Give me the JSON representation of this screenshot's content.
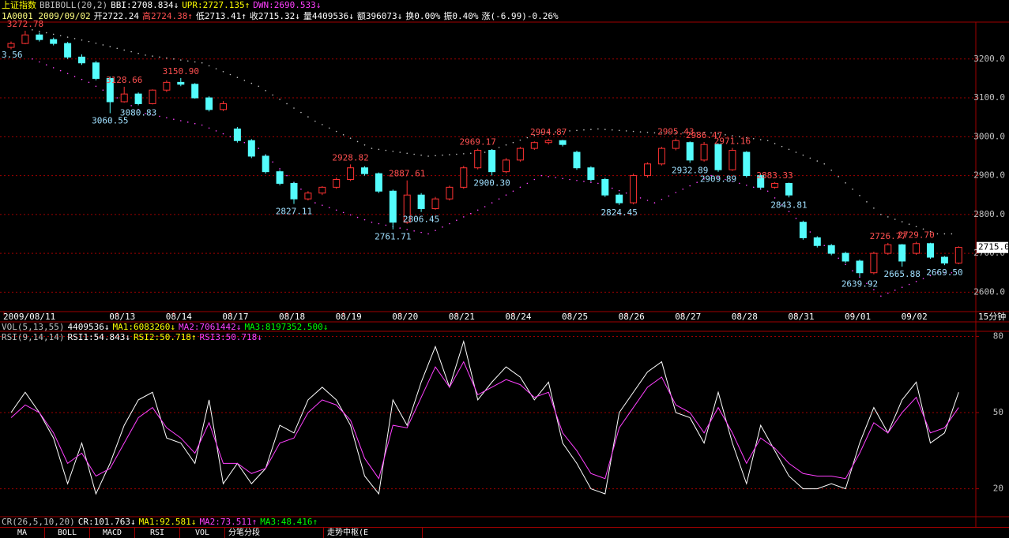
{
  "header": {
    "items": [
      {
        "text": "上证指数",
        "color": "#ffff00"
      },
      {
        "text": "BBIBOLL(20,2)",
        "color": "#c0c0c0"
      },
      {
        "text": "BBI:2708.834↓",
        "color": "#ffffff"
      },
      {
        "text": "UPR:2727.135↑",
        "color": "#ffff00"
      },
      {
        "text": "DWN:2690.533↓",
        "color": "#ff40ff"
      }
    ]
  },
  "quote": {
    "items": [
      {
        "text": "1A0001 2009/09/02",
        "color": "#ffff80"
      },
      {
        "text": "开2722.24",
        "color": "#ffffff"
      },
      {
        "text": "高2724.38↑",
        "color": "#ff5050"
      },
      {
        "text": "低2713.41↑",
        "color": "#ffffff"
      },
      {
        "text": "收2715.32↓",
        "color": "#ffffff"
      },
      {
        "text": "量4409536↓",
        "color": "#ffffff"
      },
      {
        "text": "额396073↓",
        "color": "#ffffff"
      },
      {
        "text": "换0.00%",
        "color": "#ffffff"
      },
      {
        "text": "振0.40%",
        "color": "#ffffff"
      },
      {
        "text": "涨(-6.99)-0.26%",
        "color": "#ffffff"
      }
    ]
  },
  "vol_line": {
    "items": [
      {
        "text": "VOL(5,13,55)",
        "color": "#c0c0c0"
      },
      {
        "text": "4409536↓",
        "color": "#ffffff"
      },
      {
        "text": "MA1:6083260↓",
        "color": "#ffff00"
      },
      {
        "text": "MA2:7061442↓",
        "color": "#ff40ff"
      },
      {
        "text": "MA3:8197352.500↓",
        "color": "#00ff00"
      }
    ]
  },
  "rsi_line": {
    "items": [
      {
        "text": "RSI(9,14,14)",
        "color": "#c0c0c0"
      },
      {
        "text": "RSI1:54.843↓",
        "color": "#ffffff"
      },
      {
        "text": "RSI2:50.718↑",
        "color": "#ffff00"
      },
      {
        "text": "RSI3:50.718↓",
        "color": "#ff40ff"
      }
    ]
  },
  "cr_line": {
    "items": [
      {
        "text": "CR(26,5,10,20)",
        "color": "#c0c0c0"
      },
      {
        "text": "CR:101.763↓",
        "color": "#ffffff"
      },
      {
        "text": "MA1:92.581↓",
        "color": "#ffff00"
      },
      {
        "text": "MA2:73.511↑",
        "color": "#ff40ff"
      },
      {
        "text": "MA3:48.416↑",
        "color": "#00ff00"
      }
    ]
  },
  "tabs": [
    "MA",
    "BOLL",
    "MACD",
    "RSI",
    "VOL",
    "分笔分段",
    "走势中枢(E"
  ],
  "clipped_label": "3.56",
  "period_label": "15分钟",
  "chart_data": [
    {
      "type": "candlestick",
      "up_color": "#ff3232",
      "down_color": "#54fcfc",
      "band_color": "#c0c0c0",
      "lower_band_color": "#ff40ff",
      "grid": true,
      "ylim": [
        2550,
        3295
      ],
      "yticks": [
        {
          "value": 3200,
          "label": "3200.0"
        },
        {
          "value": 3100,
          "label": "3100.0"
        },
        {
          "value": 3000,
          "label": "3000.0"
        },
        {
          "value": 2900,
          "label": "2900.0"
        },
        {
          "value": 2800,
          "label": "2800.0"
        },
        {
          "value": 2700,
          "label": "2700.0"
        },
        {
          "value": 2600,
          "label": "2600.0"
        }
      ],
      "xticks": [
        {
          "value": 0,
          "label": "2009/08/11"
        },
        {
          "value": 8,
          "label": "08/13"
        },
        {
          "value": 12,
          "label": "08/14"
        },
        {
          "value": 16,
          "label": "08/17"
        },
        {
          "value": 20,
          "label": "08/18"
        },
        {
          "value": 24,
          "label": "08/19"
        },
        {
          "value": 28,
          "label": "08/20"
        },
        {
          "value": 32,
          "label": "08/21"
        },
        {
          "value": 36,
          "label": "08/24"
        },
        {
          "value": 40,
          "label": "08/25"
        },
        {
          "value": 44,
          "label": "08/26"
        },
        {
          "value": 48,
          "label": "08/27"
        },
        {
          "value": 52,
          "label": "08/28"
        },
        {
          "value": 56,
          "label": "08/31"
        },
        {
          "value": 60,
          "label": "09/01"
        },
        {
          "value": 64,
          "label": "09/02"
        }
      ],
      "open": [
        3230,
        3240,
        3262,
        3250,
        3240,
        3205,
        3190,
        3150,
        3090,
        3110,
        3085,
        3120,
        3140,
        3135,
        3100,
        3070,
        3020,
        2990,
        2950,
        2910,
        2880,
        2840,
        2855,
        2870,
        2890,
        2920,
        2905,
        2860,
        2780,
        2850,
        2815,
        2840,
        2870,
        2920,
        2965,
        2910,
        2940,
        2970,
        2985,
        2990,
        2960,
        2920,
        2890,
        2850,
        2830,
        2900,
        2930,
        2970,
        2985,
        2940,
        2980,
        2915,
        2960,
        2900,
        2870,
        2880,
        2780,
        2740,
        2720,
        2700,
        2680,
        2650,
        2700,
        2722,
        2700,
        2725,
        2690,
        2675
      ],
      "high": [
        3245,
        3272.78,
        3268,
        3255,
        3244,
        3212,
        3195,
        3155,
        3128.66,
        3114,
        3122,
        3145,
        3150.9,
        3138,
        3104,
        3092,
        3025,
        2994,
        2955,
        2914,
        2884,
        2860,
        2873,
        2895,
        2928.82,
        2924,
        2908,
        2864,
        2887.61,
        2855,
        2845,
        2874,
        2925,
        2969.17,
        2968,
        2945,
        2974,
        2988,
        2994.87,
        2992,
        2964,
        2924,
        2894,
        2855,
        2905,
        2934,
        2974,
        2995.43,
        2988,
        2986.47,
        2983,
        2971.16,
        2963,
        2904,
        2883.33,
        2882,
        2784,
        2744,
        2724,
        2704,
        2684,
        2704,
        2726.77,
        2724,
        2729.7,
        2727,
        2693,
        2718
      ],
      "low": [
        3225,
        3238,
        3245,
        3235,
        3200,
        3185,
        3145,
        3060.55,
        3088,
        3080.83,
        3083,
        3115,
        3130,
        3098,
        3065,
        3066,
        2985,
        2945,
        2905,
        2875,
        2827.11,
        2836,
        2850,
        2866,
        2886,
        2900,
        2855,
        2761.71,
        2776,
        2806.45,
        2812,
        2836,
        2866,
        2916,
        2900.3,
        2906,
        2936,
        2966,
        2980,
        2975,
        2915,
        2885,
        2845,
        2824.45,
        2826,
        2895,
        2926,
        2965,
        2932.89,
        2936,
        2909.89,
        2912,
        2895,
        2865,
        2866,
        2843.81,
        2735,
        2715,
        2695,
        2675,
        2639.92,
        2646,
        2696,
        2665.88,
        2696,
        2686,
        2669.5,
        2672
      ],
      "close": [
        3240,
        3262,
        3250,
        3240,
        3205,
        3190,
        3150,
        3090,
        3110,
        3085,
        3120,
        3140,
        3135,
        3100,
        3070,
        3085,
        2990,
        2950,
        2910,
        2880,
        2840,
        2855,
        2870,
        2890,
        2920,
        2905,
        2860,
        2780,
        2850,
        2815,
        2840,
        2870,
        2920,
        2965,
        2910,
        2940,
        2970,
        2985,
        2990,
        2980,
        2920,
        2890,
        2850,
        2830,
        2900,
        2930,
        2970,
        2990,
        2940,
        2980,
        2915,
        2965,
        2900,
        2870,
        2880,
        2850,
        2740,
        2720,
        2700,
        2680,
        2650,
        2700,
        2722,
        2680,
        2725,
        2690,
        2675,
        2715.32
      ],
      "bands": {
        "upper": [
          3275,
          3245,
          3210,
          3190,
          3130,
          3040,
          2970,
          2950,
          2960,
          3010,
          3020,
          3010,
          3010,
          2990,
          2930,
          2800,
          2750
        ],
        "lower": [
          3200,
          3140,
          3060,
          3030,
          2970,
          2830,
          2780,
          2750,
          2820,
          2900,
          2880,
          2830,
          2900,
          2860,
          2720,
          2590,
          2650
        ]
      },
      "annotations": [
        {
          "value": 3272.78,
          "label": "3272.78"
        },
        {
          "value": 3128.66,
          "label": "3128.66"
        },
        {
          "value": 3150.9,
          "label": "3150.90"
        },
        {
          "value": 3080.83,
          "label": "3080.83"
        },
        {
          "value": 3060.55,
          "label": "3060.55"
        },
        {
          "value": 2928.82,
          "label": "2928.82"
        },
        {
          "value": 2827.11,
          "label": "2827.11"
        },
        {
          "value": 2887.61,
          "label": "2887.61"
        },
        {
          "value": 2806.45,
          "label": "2806.45"
        },
        {
          "value": 2761.71,
          "label": "2761.71"
        },
        {
          "value": 2969.17,
          "label": "2969.17"
        },
        {
          "value": 2900.3,
          "label": "2900.30"
        },
        {
          "value": 2994.87,
          "label": "2994.87"
        },
        {
          "value": 2824.45,
          "label": "2824.45"
        },
        {
          "value": 2995.43,
          "label": "2995.43"
        },
        {
          "value": 2986.47,
          "label": "2986.47"
        },
        {
          "value": 2932.89,
          "label": "2932.89"
        },
        {
          "value": 2971.16,
          "label": "2971.16"
        },
        {
          "value": 2909.89,
          "label": "2909.89"
        },
        {
          "value": 2883.33,
          "label": "2883.33"
        },
        {
          "value": 2843.81,
          "label": "2843.81"
        },
        {
          "value": 2726.77,
          "label": "2726.77"
        },
        {
          "value": 2729.7,
          "label": "2729.70"
        },
        {
          "value": 2639.92,
          "label": "2639.92"
        },
        {
          "value": 2665.88,
          "label": "2665.88"
        },
        {
          "value": 2669.5,
          "label": "2669.50"
        }
      ],
      "last_price": {
        "value": 2715,
        "label": "2715.0"
      }
    },
    {
      "type": "line",
      "ylim": [
        9,
        82
      ],
      "yticks": [
        80,
        50,
        20
      ],
      "grid": true,
      "series": [
        {
          "name": "RSI1",
          "color": "#ffffff",
          "values": [
            50,
            58,
            50,
            40,
            22,
            38,
            18,
            30,
            45,
            55,
            58,
            40,
            38,
            30,
            55,
            22,
            30,
            22,
            28,
            45,
            42,
            55,
            60,
            55,
            45,
            25,
            18,
            55,
            45,
            62,
            76,
            60,
            78,
            55,
            62,
            68,
            64,
            55,
            62,
            38,
            30,
            20,
            18,
            50,
            58,
            66,
            70,
            50,
            48,
            38,
            58,
            38,
            22,
            45,
            35,
            25,
            20,
            20,
            22,
            20,
            38,
            52,
            42,
            55,
            62,
            38,
            42,
            58
          ]
        },
        {
          "name": "RSI2",
          "color": "#ff40ff",
          "values": [
            48,
            53,
            50,
            42,
            30,
            34,
            25,
            28,
            38,
            48,
            52,
            44,
            40,
            34,
            46,
            30,
            30,
            26,
            28,
            38,
            40,
            50,
            55,
            53,
            47,
            32,
            24,
            45,
            44,
            56,
            68,
            60,
            70,
            57,
            60,
            63,
            61,
            56,
            58,
            42,
            35,
            26,
            24,
            44,
            52,
            60,
            64,
            53,
            50,
            42,
            52,
            42,
            30,
            40,
            36,
            30,
            26,
            25,
            25,
            24,
            34,
            46,
            42,
            50,
            56,
            42,
            44,
            52
          ]
        }
      ]
    }
  ]
}
